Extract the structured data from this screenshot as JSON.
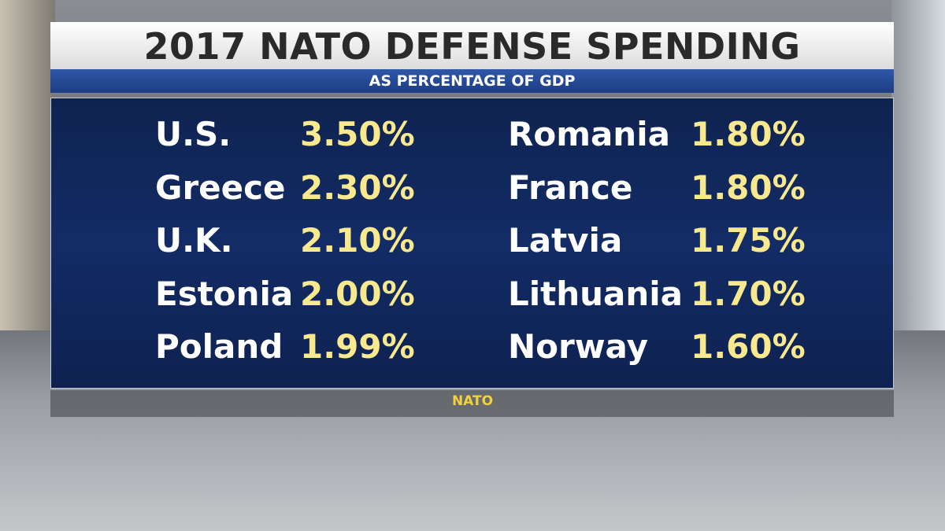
{
  "header": {
    "title": "2017 NATO DEFENSE SPENDING",
    "subtitle": "AS PERCENTAGE OF GDP"
  },
  "table": {
    "columns": [
      [
        {
          "country": "U.S.",
          "value": "3.50%"
        },
        {
          "country": "Greece",
          "value": "2.30%"
        },
        {
          "country": "U.K.",
          "value": "2.10%"
        },
        {
          "country": "Estonia",
          "value": "2.00%"
        },
        {
          "country": "Poland",
          "value": "1.99%"
        }
      ],
      [
        {
          "country": "Romania",
          "value": "1.80%"
        },
        {
          "country": "France",
          "value": "1.80%"
        },
        {
          "country": "Latvia",
          "value": "1.75%"
        },
        {
          "country": "Lithuania",
          "value": "1.70%"
        },
        {
          "country": "Norway",
          "value": "1.60%"
        }
      ]
    ]
  },
  "source": "NATO"
}
